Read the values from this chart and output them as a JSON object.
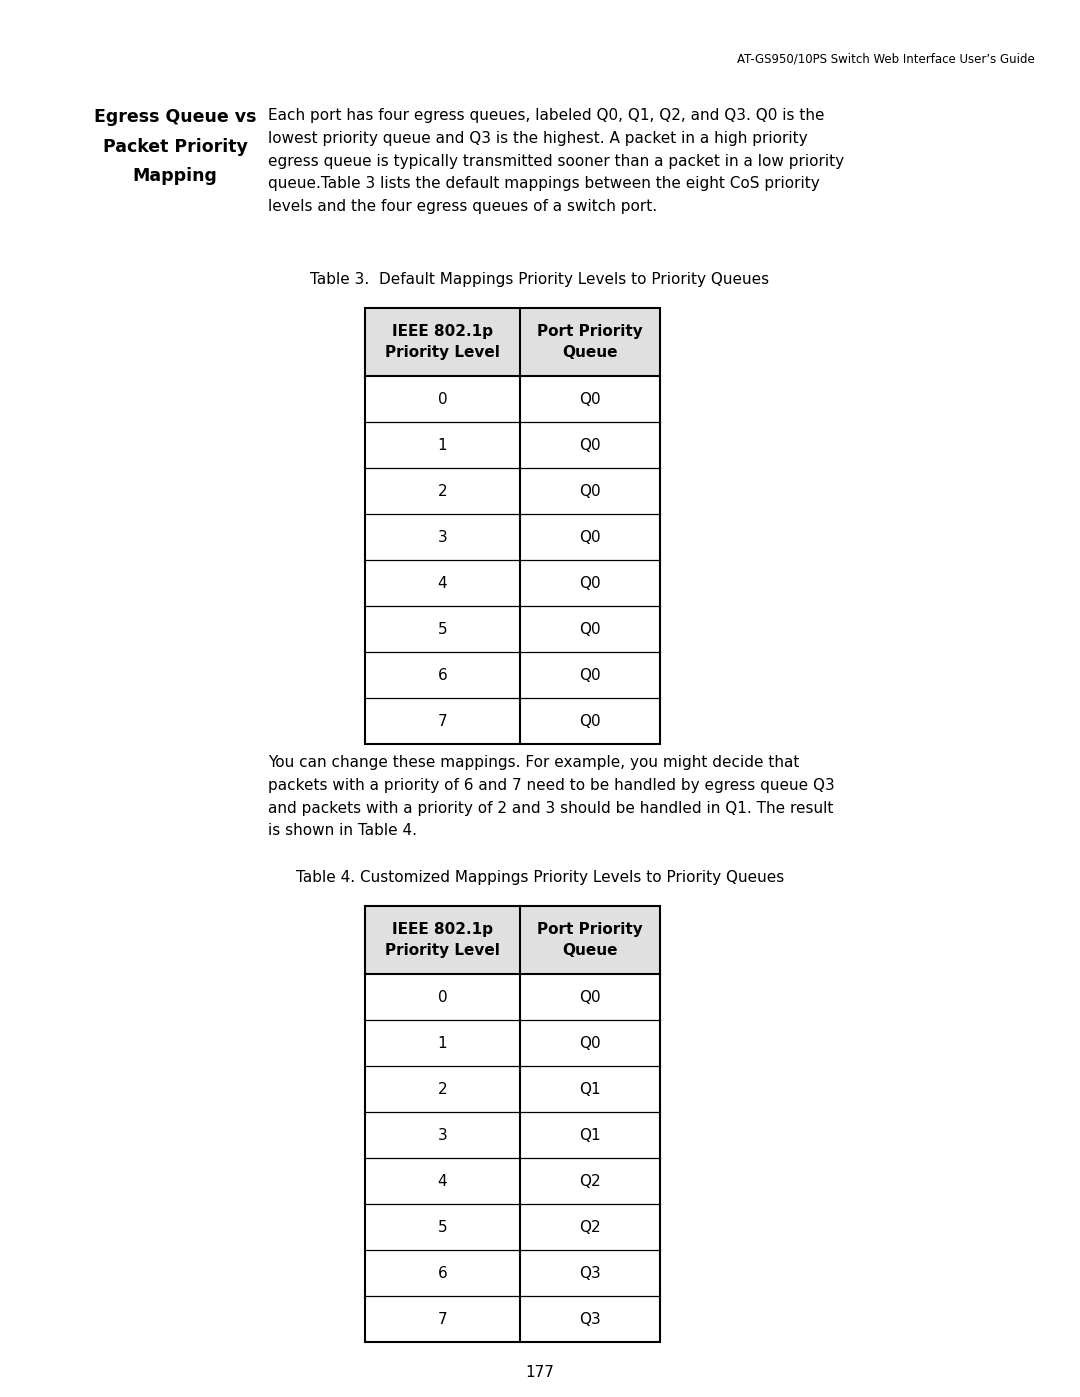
{
  "header_text": "AT-GS950/10PS Switch Web Interface User’s Guide",
  "page_number": "177",
  "section_title_line1": "Egress Queue vs",
  "section_title_line2": "Packet Priority",
  "section_title_line3": "Mapping",
  "body_text_lines": [
    "Each port has four egress queues, labeled Q0, Q1, Q2, and Q3. Q0 is the",
    "lowest priority queue and Q3 is the highest. A packet in a high priority",
    "egress queue is typically transmitted sooner than a packet in a low priority",
    "queue.Table 3 lists the default mappings between the eight CoS priority",
    "levels and the four egress queues of a switch port."
  ],
  "table3_caption": "Table 3.  Default Mappings Priority Levels to Priority Queues",
  "table3_col1_header": "IEEE 802.1p\nPriority Level",
  "table3_col2_header": "Port Priority\nQueue",
  "table3_rows": [
    [
      "0",
      "Q0"
    ],
    [
      "1",
      "Q0"
    ],
    [
      "2",
      "Q0"
    ],
    [
      "3",
      "Q0"
    ],
    [
      "4",
      "Q0"
    ],
    [
      "5",
      "Q0"
    ],
    [
      "6",
      "Q0"
    ],
    [
      "7",
      "Q0"
    ]
  ],
  "between_text_lines": [
    "You can change these mappings. For example, you might decide that",
    "packets with a priority of 6 and 7 need to be handled by egress queue Q3",
    "and packets with a priority of 2 and 3 should be handled in Q1. The result",
    "is shown in Table 4."
  ],
  "table4_caption": "Table 4. Customized Mappings Priority Levels to Priority Queues",
  "table4_col1_header": "IEEE 802.1p\nPriority Level",
  "table4_col2_header": "Port Priority\nQueue",
  "table4_rows": [
    [
      "0",
      "Q0"
    ],
    [
      "1",
      "Q0"
    ],
    [
      "2",
      "Q1"
    ],
    [
      "3",
      "Q1"
    ],
    [
      "4",
      "Q2"
    ],
    [
      "5",
      "Q2"
    ],
    [
      "6",
      "Q3"
    ],
    [
      "7",
      "Q3"
    ]
  ],
  "bg_color": "#ffffff",
  "text_color": "#000000",
  "table_border_color": "#000000",
  "table_header_bg": "#e0e0e0",
  "body_font_size": 11.0,
  "header_font_size": 8.5,
  "title_font_size": 12.5,
  "caption_font_size": 11.0,
  "table_font_size": 11.0,
  "page_num_font_size": 11.0
}
